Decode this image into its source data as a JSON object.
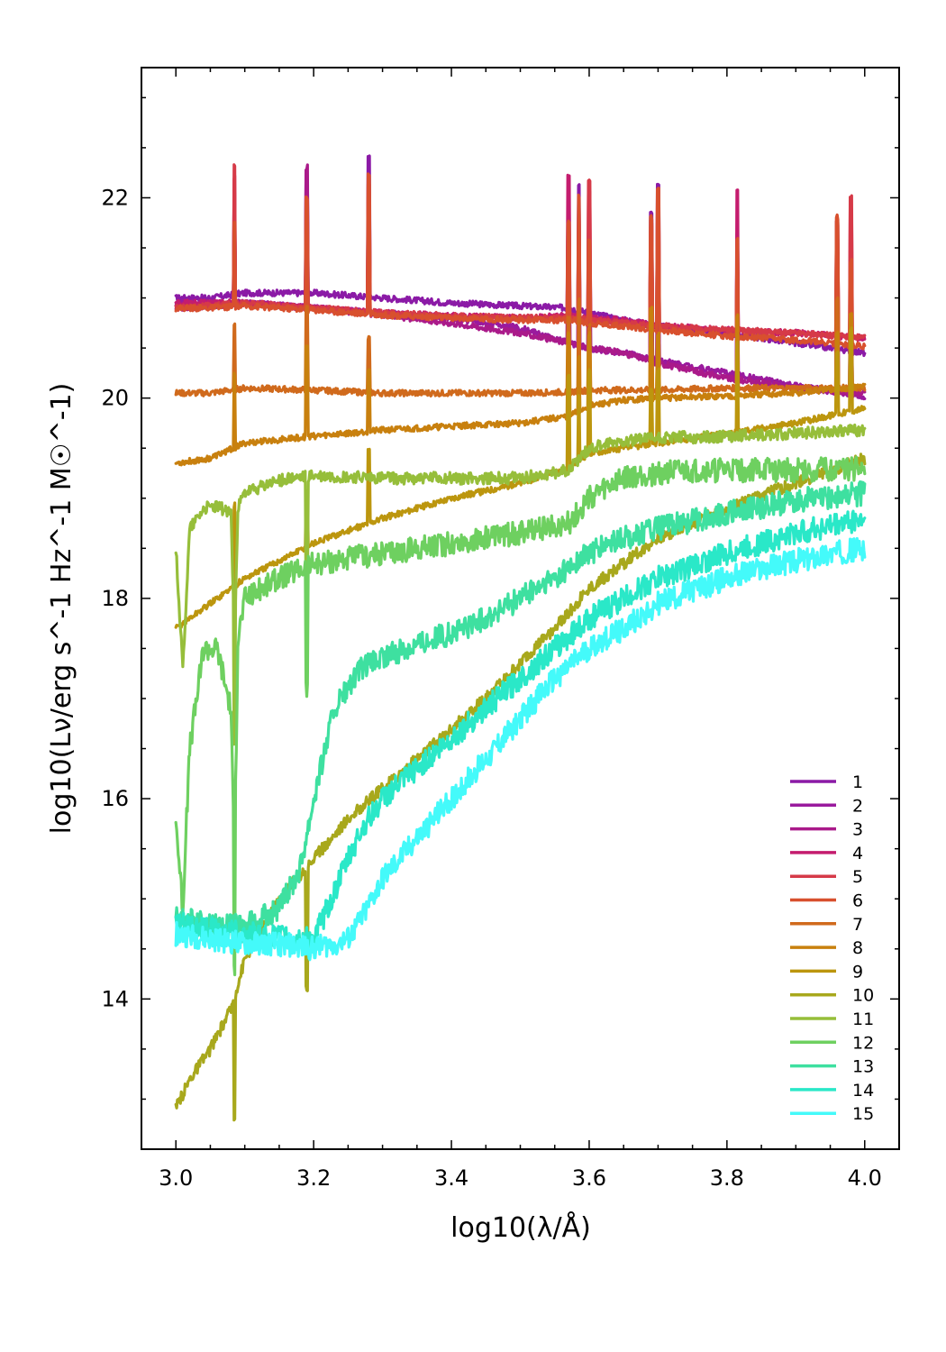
{
  "chart_data": {
    "type": "line",
    "title": "",
    "xlabel": "log10(λ/Å)",
    "ylabel": "log10(Lν/erg s^-1 Hz^-1 M☉^-1)",
    "xlim": [
      2.95,
      4.05
    ],
    "ylim": [
      12.5,
      23.3
    ],
    "x_ticks": [
      3.0,
      3.2,
      3.4,
      3.6,
      3.8,
      4.0
    ],
    "x_tick_labels": [
      "3.0",
      "3.2",
      "3.4",
      "3.6",
      "3.8",
      "4.0"
    ],
    "y_ticks": [
      14,
      16,
      18,
      20,
      22
    ],
    "y_tick_labels": [
      "14",
      "16",
      "18",
      "20",
      "22"
    ],
    "grid": false,
    "legend_position": "bottom-right",
    "emission_lines_x": [
      3.085,
      3.19,
      3.28,
      3.57,
      3.585,
      3.6,
      3.69,
      3.7,
      3.815,
      3.96,
      3.98
    ],
    "series": [
      {
        "name": "1",
        "color": "#8b1aa6",
        "x": [
          3.0,
          3.05,
          3.1,
          3.2,
          3.3,
          3.4,
          3.5,
          3.57,
          3.6,
          3.65,
          3.7,
          3.8,
          3.9,
          4.0
        ],
        "y": [
          21.0,
          21.0,
          21.05,
          21.05,
          21.0,
          20.95,
          20.92,
          20.9,
          20.85,
          20.78,
          20.72,
          20.65,
          20.55,
          20.45
        ]
      },
      {
        "name": "2",
        "color": "#9a1a9e",
        "x": [
          3.0,
          3.05,
          3.1,
          3.2,
          3.3,
          3.4,
          3.5,
          3.57,
          3.6,
          3.65,
          3.7,
          3.8,
          3.9,
          4.0
        ],
        "y": [
          20.95,
          20.95,
          20.95,
          20.9,
          20.85,
          20.8,
          20.7,
          20.55,
          20.5,
          20.45,
          20.38,
          20.25,
          20.12,
          20.02
        ]
      },
      {
        "name": "3",
        "color": "#aa1a8a",
        "x": [
          3.0,
          3.05,
          3.1,
          3.2,
          3.3,
          3.4,
          3.5,
          3.57,
          3.6,
          3.65,
          3.7,
          3.8,
          3.9,
          4.0
        ],
        "y": [
          20.9,
          20.92,
          20.95,
          20.9,
          20.83,
          20.75,
          20.65,
          20.55,
          20.5,
          20.45,
          20.35,
          20.2,
          20.1,
          20.05
        ]
      },
      {
        "name": "4",
        "color": "#c41c6e",
        "x": [
          3.0,
          3.05,
          3.1,
          3.2,
          3.3,
          3.4,
          3.5,
          3.57,
          3.6,
          3.65,
          3.7,
          3.8,
          3.9,
          4.0
        ],
        "y": [
          20.95,
          20.95,
          20.95,
          20.9,
          20.85,
          20.82,
          20.8,
          20.82,
          20.8,
          20.78,
          20.72,
          20.68,
          20.65,
          20.6
        ]
      },
      {
        "name": "5",
        "color": "#d63a48",
        "x": [
          3.0,
          3.05,
          3.1,
          3.2,
          3.3,
          3.4,
          3.5,
          3.57,
          3.6,
          3.65,
          3.7,
          3.8,
          3.9,
          4.0
        ],
        "y": [
          20.9,
          20.92,
          20.95,
          20.9,
          20.85,
          20.82,
          20.8,
          20.8,
          20.78,
          20.75,
          20.72,
          20.68,
          20.65,
          20.6
        ]
      },
      {
        "name": "6",
        "color": "#d8502e",
        "x": [
          3.0,
          3.05,
          3.1,
          3.2,
          3.3,
          3.4,
          3.5,
          3.57,
          3.6,
          3.65,
          3.7,
          3.8,
          3.9,
          4.0
        ],
        "y": [
          20.9,
          20.9,
          20.92,
          20.88,
          20.83,
          20.8,
          20.78,
          20.78,
          20.75,
          20.72,
          20.68,
          20.62,
          20.58,
          20.52
        ]
      },
      {
        "name": "7",
        "color": "#d06a1c",
        "x": [
          3.0,
          3.05,
          3.1,
          3.2,
          3.3,
          3.4,
          3.5,
          3.57,
          3.6,
          3.65,
          3.7,
          3.8,
          3.9,
          4.0
        ],
        "y": [
          20.05,
          20.05,
          20.1,
          20.08,
          20.05,
          20.05,
          20.05,
          20.06,
          20.08,
          20.08,
          20.08,
          20.1,
          20.1,
          20.1
        ]
      },
      {
        "name": "8",
        "color": "#c8800e",
        "x": [
          3.0,
          3.05,
          3.1,
          3.2,
          3.3,
          3.4,
          3.5,
          3.57,
          3.6,
          3.65,
          3.7,
          3.8,
          3.9,
          4.0
        ],
        "y": [
          19.35,
          19.4,
          19.55,
          19.62,
          19.68,
          19.72,
          19.75,
          19.82,
          19.92,
          19.98,
          20.0,
          20.02,
          20.05,
          20.12
        ]
      },
      {
        "name": "9",
        "color": "#bc960e",
        "x": [
          3.0,
          3.05,
          3.1,
          3.2,
          3.3,
          3.4,
          3.5,
          3.57,
          3.6,
          3.65,
          3.7,
          3.8,
          3.9,
          4.0
        ],
        "y": [
          17.7,
          17.95,
          18.2,
          18.55,
          18.8,
          19.0,
          19.15,
          19.3,
          19.45,
          19.5,
          19.55,
          19.65,
          19.75,
          19.9
        ]
      },
      {
        "name": "10",
        "color": "#a8a81c",
        "x": [
          3.0,
          3.02,
          3.05,
          3.08,
          3.1,
          3.15,
          3.2,
          3.25,
          3.3,
          3.35,
          3.4,
          3.45,
          3.5,
          3.55,
          3.6,
          3.65,
          3.7,
          3.8,
          3.9,
          4.0
        ],
        "y": [
          12.9,
          13.2,
          13.5,
          13.9,
          14.4,
          15.0,
          15.4,
          15.8,
          16.1,
          16.4,
          16.7,
          17.0,
          17.35,
          17.7,
          18.1,
          18.35,
          18.6,
          18.9,
          19.15,
          19.4
        ]
      },
      {
        "name": "11",
        "color": "#96be3a",
        "x": [
          3.0,
          3.01,
          3.02,
          3.04,
          3.06,
          3.08,
          3.085,
          3.09,
          3.1,
          3.15,
          3.2,
          3.3,
          3.4,
          3.5,
          3.57,
          3.6,
          3.65,
          3.7,
          3.8,
          3.9,
          4.0
        ],
        "y": [
          18.5,
          17.3,
          18.7,
          18.9,
          18.92,
          18.85,
          17.6,
          18.9,
          19.05,
          19.18,
          19.22,
          19.2,
          19.2,
          19.2,
          19.28,
          19.5,
          19.58,
          19.6,
          19.62,
          19.65,
          19.68
        ]
      },
      {
        "name": "12",
        "color": "#6ed060",
        "x": [
          3.0,
          3.01,
          3.02,
          3.04,
          3.06,
          3.08,
          3.085,
          3.09,
          3.1,
          3.15,
          3.2,
          3.3,
          3.4,
          3.5,
          3.57,
          3.6,
          3.65,
          3.7,
          3.8,
          3.9,
          4.0
        ],
        "y": [
          15.8,
          14.9,
          16.5,
          17.5,
          17.5,
          16.9,
          15.3,
          17.6,
          18.0,
          18.2,
          18.35,
          18.45,
          18.55,
          18.65,
          18.75,
          19.0,
          19.2,
          19.25,
          19.28,
          19.28,
          19.3
        ]
      },
      {
        "name": "13",
        "color": "#3ee0a0",
        "x": [
          3.0,
          3.05,
          3.1,
          3.15,
          3.18,
          3.2,
          3.23,
          3.27,
          3.3,
          3.35,
          3.4,
          3.45,
          3.5,
          3.55,
          3.6,
          3.65,
          3.7,
          3.8,
          3.9,
          4.0
        ],
        "y": [
          14.8,
          14.75,
          14.72,
          14.9,
          15.3,
          16.0,
          16.9,
          17.3,
          17.4,
          17.55,
          17.65,
          17.8,
          18.0,
          18.2,
          18.45,
          18.6,
          18.7,
          18.85,
          18.98,
          19.05
        ]
      },
      {
        "name": "14",
        "color": "#2ae8c8",
        "x": [
          3.0,
          3.05,
          3.1,
          3.15,
          3.2,
          3.22,
          3.25,
          3.27,
          3.3,
          3.35,
          3.4,
          3.45,
          3.5,
          3.55,
          3.6,
          3.65,
          3.7,
          3.8,
          3.9,
          4.0
        ],
        "y": [
          14.75,
          14.7,
          14.65,
          14.62,
          14.6,
          14.9,
          15.4,
          15.7,
          16.0,
          16.3,
          16.6,
          16.9,
          17.2,
          17.5,
          17.8,
          18.0,
          18.2,
          18.45,
          18.65,
          18.8
        ]
      },
      {
        "name": "15",
        "color": "#44fafa",
        "x": [
          3.0,
          3.05,
          3.1,
          3.15,
          3.2,
          3.25,
          3.27,
          3.3,
          3.35,
          3.4,
          3.45,
          3.5,
          3.55,
          3.6,
          3.65,
          3.7,
          3.8,
          3.9,
          4.0
        ],
        "y": [
          14.65,
          14.6,
          14.55,
          14.55,
          14.5,
          14.6,
          14.8,
          15.2,
          15.6,
          16.0,
          16.4,
          16.8,
          17.2,
          17.5,
          17.7,
          17.95,
          18.2,
          18.38,
          18.5
        ]
      }
    ]
  }
}
